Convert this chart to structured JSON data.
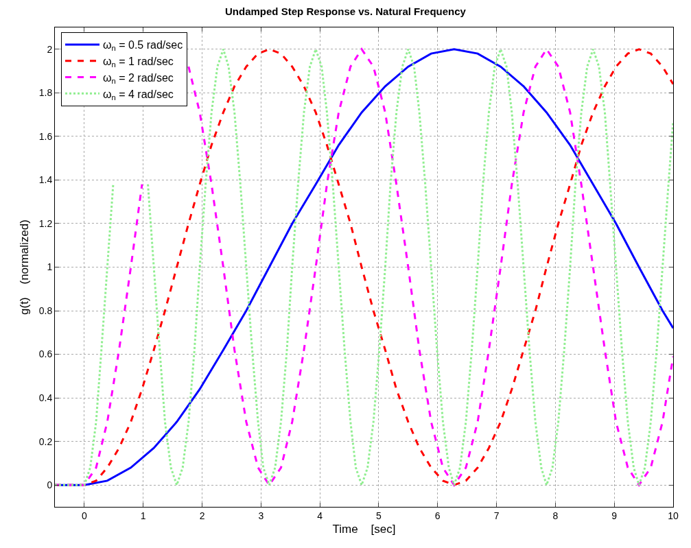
{
  "chart_data": {
    "type": "line",
    "title": "Undamped Step Response vs. Natural Frequency",
    "xlabel": "Time    [sec]",
    "ylabel": "g(t)    (normalized)",
    "xlim": [
      -0.5,
      10
    ],
    "ylim": [
      -0.1,
      2.1
    ],
    "xticks": [
      0,
      1,
      2,
      3,
      4,
      5,
      6,
      7,
      8,
      9,
      10
    ],
    "yticks": [
      0,
      0.2,
      0.4,
      0.6,
      0.8,
      1,
      1.2,
      1.4,
      1.6,
      1.8,
      2
    ],
    "grid": true,
    "legend": "top left",
    "series": [
      {
        "name": "ω$_{n}$ = 0.5 rad/sec",
        "color": "#0000ff",
        "line_style": "solid",
        "x": [
          -0.5,
          0,
          0.39,
          0.79,
          1.18,
          1.57,
          1.96,
          2.36,
          2.75,
          3.14,
          3.53,
          3.93,
          4.32,
          4.71,
          5.11,
          5.5,
          5.89,
          6.28,
          6.68,
          7.07,
          7.46,
          7.85,
          8.25,
          8.64,
          9.03,
          9.42,
          9.82,
          10
        ],
        "values": [
          0,
          0,
          0.02,
          0.08,
          0.17,
          0.29,
          0.44,
          0.62,
          0.8,
          1,
          1.2,
          1.38,
          1.56,
          1.71,
          1.83,
          1.92,
          1.98,
          2,
          1.98,
          1.92,
          1.83,
          1.71,
          1.56,
          1.38,
          1.2,
          1,
          0.8,
          0.72
        ]
      },
      {
        "name": "ω$_{n}$ = 1 rad/sec",
        "color": "#ff0000",
        "line_style": "dashed",
        "x": [
          -0.5,
          0,
          0.2,
          0.39,
          0.59,
          0.79,
          0.98,
          1.18,
          1.37,
          1.57,
          1.77,
          1.96,
          2.16,
          2.36,
          2.55,
          2.75,
          2.95,
          3.14,
          3.34,
          3.53,
          3.73,
          3.93,
          4.12,
          4.32,
          4.52,
          4.71,
          4.91,
          5.11,
          5.3,
          5.5,
          5.69,
          5.89,
          6.09,
          6.28,
          6.48,
          6.68,
          6.87,
          7.07,
          7.26,
          7.46,
          7.66,
          7.85,
          8.05,
          8.25,
          8.44,
          8.64,
          8.84,
          9.03,
          9.23,
          9.42,
          9.62,
          9.82,
          10
        ],
        "values": [
          0,
          0,
          0.02,
          0.08,
          0.17,
          0.29,
          0.44,
          0.62,
          0.8,
          1,
          1.2,
          1.38,
          1.56,
          1.71,
          1.83,
          1.92,
          1.98,
          2,
          1.98,
          1.92,
          1.83,
          1.71,
          1.56,
          1.38,
          1.2,
          1,
          0.8,
          0.62,
          0.44,
          0.29,
          0.17,
          0.08,
          0.02,
          0,
          0.02,
          0.08,
          0.17,
          0.29,
          0.44,
          0.62,
          0.8,
          1,
          1.2,
          1.38,
          1.56,
          1.71,
          1.83,
          1.92,
          1.98,
          2,
          1.98,
          1.92,
          1.84
        ]
      },
      {
        "name": "ω$_{n}$ = 2 rad/sec",
        "color": "#ff00ff",
        "line_style": "dashed",
        "x": [
          -0.5,
          0,
          0.2,
          0.39,
          0.59,
          0.79,
          0.98,
          1.18,
          1.37,
          1.57,
          1.77,
          1.96,
          2.16,
          2.36,
          2.55,
          2.75,
          2.95,
          3.14,
          3.34,
          3.53,
          3.73,
          3.93,
          4.12,
          4.32,
          4.52,
          4.71,
          4.91,
          5.11,
          5.3,
          5.5,
          5.69,
          5.89,
          6.09,
          6.28,
          6.48,
          6.68,
          6.87,
          7.07,
          7.26,
          7.46,
          7.66,
          7.85,
          8.05,
          8.25,
          8.44,
          8.64,
          8.84,
          9.03,
          9.23,
          9.42,
          9.62,
          9.82,
          10
        ],
        "values": [
          0,
          0,
          0.08,
          0.29,
          0.62,
          1,
          1.38,
          null,
          null,
          null,
          1.92,
          1.71,
          1.38,
          1,
          0.62,
          0.29,
          0.08,
          0,
          0.08,
          0.29,
          0.62,
          1,
          1.38,
          1.71,
          1.92,
          2,
          1.92,
          1.71,
          1.38,
          1,
          0.62,
          0.29,
          0.08,
          0,
          0.08,
          0.29,
          0.62,
          1,
          1.38,
          1.71,
          1.92,
          2,
          1.92,
          1.71,
          1.38,
          1,
          0.62,
          0.29,
          0.08,
          0,
          0.08,
          0.29,
          0.59
        ]
      },
      {
        "name": "ω$_{n}$ = 4 rad/sec",
        "color": "#90ee90",
        "line_style": "dotted",
        "x": [
          -0.5,
          0,
          0.1,
          0.2,
          0.29,
          0.39,
          0.49,
          0.59,
          0.69,
          0.79,
          0.88,
          0.98,
          1.08,
          1.18,
          1.28,
          1.37,
          1.47,
          1.57,
          1.67,
          1.77,
          1.87,
          1.96,
          2.06,
          2.16,
          2.26,
          2.36,
          2.45,
          2.55,
          2.65,
          2.75,
          2.85,
          2.95,
          3.04,
          3.14,
          3.24,
          3.34,
          3.44,
          3.53,
          3.63,
          3.73,
          3.83,
          3.93,
          4.03,
          4.12,
          4.22,
          4.32,
          4.42,
          4.52,
          4.61,
          4.71,
          4.81,
          4.91,
          5.01,
          5.11,
          5.2,
          5.3,
          5.4,
          5.5,
          5.6,
          5.69,
          5.79,
          5.89,
          5.99,
          6.09,
          6.19,
          6.28,
          6.38,
          6.48,
          6.58,
          6.68,
          6.77,
          6.87,
          6.97,
          7.07,
          7.17,
          7.26,
          7.36,
          7.46,
          7.56,
          7.66,
          7.76,
          7.85,
          7.95,
          8.05,
          8.15,
          8.25,
          8.34,
          8.44,
          8.54,
          8.64,
          8.74,
          8.84,
          8.93,
          9.03,
          9.13,
          9.23,
          9.33,
          9.42,
          9.52,
          9.62,
          9.72,
          9.82,
          9.92,
          10
        ],
        "values": [
          0,
          0,
          0.08,
          0.29,
          0.62,
          1,
          1.38,
          null,
          null,
          null,
          null,
          null,
          1.38,
          1,
          0.62,
          0.29,
          0.08,
          0,
          0.08,
          0.29,
          0.62,
          1,
          1.38,
          1.71,
          1.92,
          2,
          1.92,
          1.71,
          1.38,
          1,
          0.62,
          0.29,
          0.08,
          0,
          0.08,
          0.29,
          0.62,
          1,
          1.38,
          1.71,
          1.92,
          2,
          1.92,
          1.71,
          1.38,
          1,
          0.62,
          0.29,
          0.08,
          0,
          0.08,
          0.29,
          0.62,
          1,
          1.38,
          1.71,
          1.92,
          2,
          1.92,
          1.71,
          1.38,
          1,
          0.62,
          0.29,
          0.08,
          0,
          0.08,
          0.29,
          0.62,
          1,
          1.38,
          1.71,
          1.92,
          2,
          1.92,
          1.71,
          1.38,
          1,
          0.62,
          0.29,
          0.08,
          0,
          0.08,
          0.29,
          0.62,
          1,
          1.38,
          1.71,
          1.92,
          2,
          1.92,
          1.71,
          1.38,
          1,
          0.62,
          0.29,
          0.08,
          0,
          0.08,
          0.29,
          0.62,
          1,
          1.38,
          1.67
        ]
      }
    ]
  }
}
